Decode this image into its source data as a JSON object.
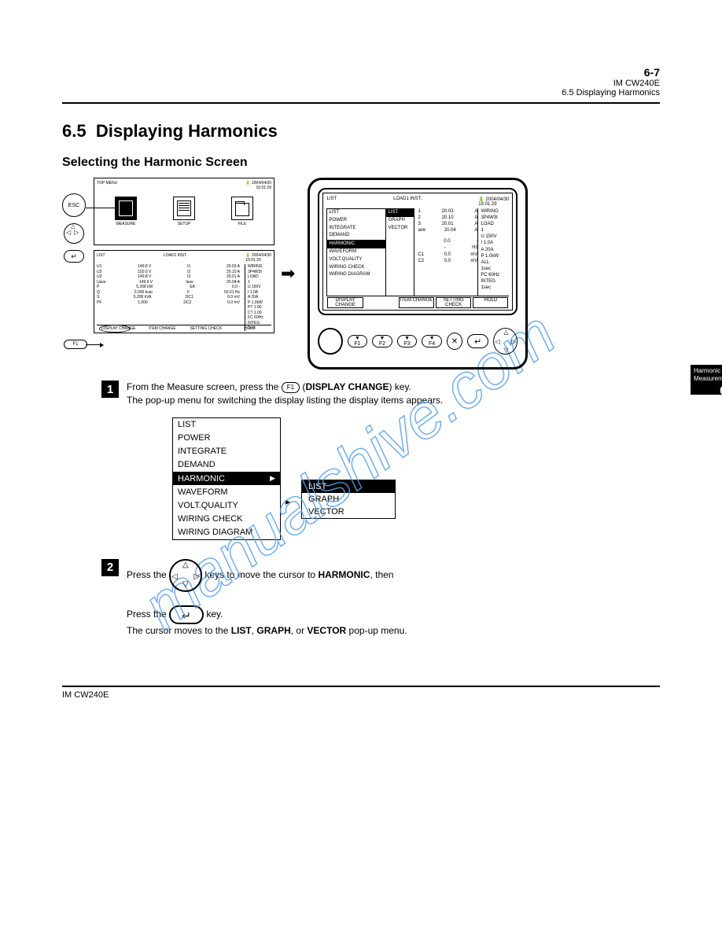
{
  "header": {
    "page_num": "6-7",
    "model": "IM CW240E",
    "section_ref": "6.5  Displaying Harmonics"
  },
  "section": {
    "number": "6.5",
    "title": "Displaying Harmonics"
  },
  "subsection1": "Selecting the Harmonic Screen",
  "side_tab": {
    "l1": "Harmonic",
    "l2": "Measurement",
    "num": "6"
  },
  "top_menu": {
    "title": "TOP MENU",
    "date": "2004/04/30",
    "time": "15:01:29",
    "icons": [
      {
        "name": "measure-icon",
        "label": "MEASURE"
      },
      {
        "name": "setup-icon",
        "label": "SETUP"
      },
      {
        "name": "file-icon",
        "label": "FILE"
      }
    ]
  },
  "esc_label": "ESC",
  "enter_glyph": "↵",
  "f1_label": "F1",
  "list_panel": {
    "title": "LIST",
    "mode": "LOAD1 INST.",
    "date": "2004/04/30",
    "time": "15:01:29",
    "rows_left": [
      [
        "U1",
        "149.8",
        "V",
        "I1",
        "20.03",
        "A"
      ],
      [
        "U2",
        "150.0",
        "V",
        "I2",
        "20.10",
        "A"
      ],
      [
        "U3",
        "149.8",
        "V",
        "I3",
        "20.01",
        "A"
      ],
      [
        "Uave",
        "149.9",
        "V",
        "Iave",
        "20.04",
        "A"
      ]
    ],
    "rows_bot": [
      [
        "P",
        "5.208",
        "kW",
        "EA",
        "0.0",
        "-"
      ],
      [
        "Q",
        "0.000",
        "kvar",
        "F",
        "50.01",
        "Hz"
      ],
      [
        "S",
        "5.208",
        "kVA",
        "DC1",
        "0.0",
        "mV"
      ],
      [
        "PF",
        "1.000",
        "",
        "DC2",
        "0.0",
        "mV"
      ]
    ],
    "side": [
      "WIRING",
      "3P4W3I",
      "LOAD",
      "1",
      "U 150V",
      "I 1.0A",
      "A 20A",
      "P 1.0kW",
      "PT 1.00",
      "CT 1.00",
      "FC 60Hz",
      "INTEG.",
      "1sec"
    ],
    "footer": [
      "DISPLAY CHANGE",
      "ITEM CHANGE",
      "SETTING CHECK",
      "HOLD"
    ]
  },
  "device": {
    "title": "LIST",
    "mode": "LOAD1 INST.",
    "date": "2004/04/30",
    "time": "15:01:29",
    "menu": [
      "LIST",
      "POWER",
      "INTEGRATE",
      "DEMAND",
      "HARMONIC",
      "WAVEFORM",
      "VOLT.QUALITY",
      "WIRING CHECK",
      "WIRING DIAGRAM"
    ],
    "menu_hl": 4,
    "submenu": [
      "LIST",
      "GRAPH",
      "VECTOR"
    ],
    "sub_hl": 0,
    "data_rows": [
      [
        "1",
        "20.03",
        "A"
      ],
      [
        "2",
        "20.10",
        "A"
      ],
      [
        "3",
        "20.01",
        "A"
      ],
      [
        "ave",
        "20.04",
        "A"
      ]
    ],
    "bottom_rows": [
      [
        "",
        "0.0",
        "-"
      ],
      [
        "",
        "-",
        "Hz"
      ],
      [
        "C1",
        "0.0",
        "mV"
      ],
      [
        "C2",
        "0.0",
        "mV"
      ]
    ],
    "side": [
      "WIRING",
      "3P4W3I",
      "LOAD",
      "1",
      "U 150V",
      "I 1.0A",
      "A 20A",
      "P 1.0kW",
      "ALL",
      "1sec",
      "FC 60Hz",
      "INTEG.",
      "1sec"
    ],
    "footer": [
      "DISPLAY CHANGE",
      "",
      "ITEM CHANGE",
      "SETTING CHECK",
      "HOLD"
    ],
    "fkeys": [
      "F1",
      "F2",
      "F3",
      "F4"
    ],
    "esc": "✕"
  },
  "step1": {
    "num": "1",
    "line1_a": "From the Measure screen, press the ",
    "f1": "F1",
    "line1_b": " (",
    "disp": "DISPLAY CHANGE",
    "line1_c": ") key.",
    "line2": "The pop-up menu for switching the display listing the display items appears."
  },
  "popup": {
    "items": [
      "LIST",
      "POWER",
      "INTEGRATE",
      "DEMAND",
      "HARMONIC",
      "WAVEFORM",
      "VOLT.QUALITY",
      "WIRING CHECK",
      "WIRING DIAGRAM"
    ],
    "hl": 4,
    "submenu": [
      "LIST",
      "GRAPH",
      "VECTOR"
    ],
    "sub_hl": 0
  },
  "step2": {
    "num": "2",
    "l1a": "Press the ",
    "l1b": " keys to move the cursor to ",
    "harm": "HARMONIC",
    "l1c": ", then",
    "l2a": "Press the ",
    "l2b": " key.",
    "l3a": "The cursor moves to the ",
    "list": "LIST",
    "l3b": ", ",
    "graph": "GRAPH",
    "l3c": ", or ",
    "vector": "VECTOR",
    "l3d": " pop-up menu."
  },
  "watermark": "manualshive.com"
}
